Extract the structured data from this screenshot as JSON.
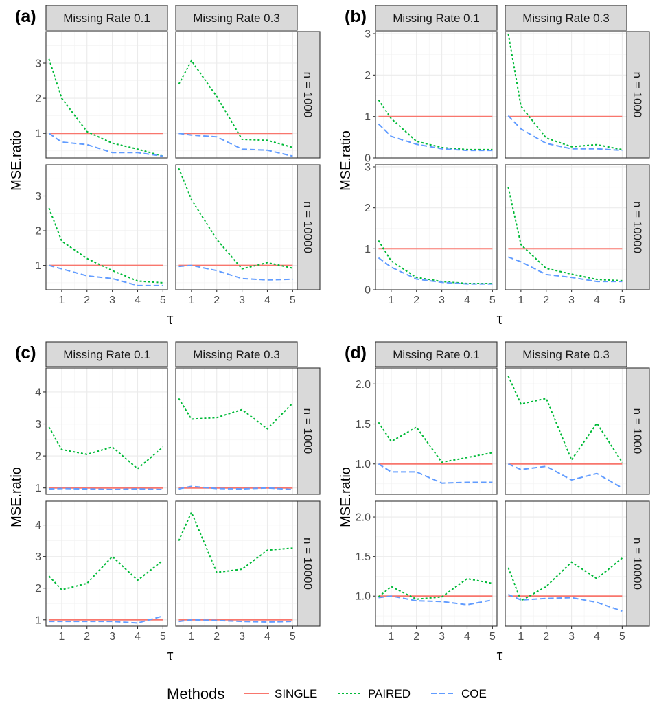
{
  "legend": {
    "title": "Methods",
    "items": [
      {
        "key": "SINGLE",
        "label": "SINGLE",
        "color": "#F8766D",
        "dash": "solid"
      },
      {
        "key": "PAIRED",
        "label": "PAIRED",
        "color": "#00BA38",
        "dash": "dotted"
      },
      {
        "key": "COE",
        "label": "COE",
        "color": "#619CFF",
        "dash": "dashed"
      }
    ]
  },
  "chart_data": [
    {
      "panel_label": "(a)",
      "type": "line",
      "x": [
        0.5,
        1,
        2,
        3,
        4,
        5
      ],
      "x_ticks": [
        1,
        2,
        3,
        4,
        5
      ],
      "xlabel": "τ",
      "ylabel": "MSE.ratio",
      "ylim": [
        0.3,
        3.9
      ],
      "y_ticks": [
        1,
        2,
        3
      ],
      "grid": true,
      "columns": [
        "Missing Rate 0.1",
        "Missing Rate 0.3"
      ],
      "rows": [
        "n = 1000",
        "n = 10000"
      ],
      "facets": [
        {
          "col": 0,
          "row": 0,
          "series": [
            {
              "name": "SINGLE",
              "values": [
                1,
                1,
                1,
                1,
                1,
                1
              ]
            },
            {
              "name": "PAIRED",
              "values": [
                3.12,
                2.0,
                1.05,
                0.72,
                0.55,
                0.35
              ]
            },
            {
              "name": "COE",
              "values": [
                1.0,
                0.75,
                0.68,
                0.45,
                0.45,
                0.35
              ]
            }
          ]
        },
        {
          "col": 1,
          "row": 0,
          "series": [
            {
              "name": "SINGLE",
              "values": [
                1,
                1,
                1,
                1,
                1,
                1
              ]
            },
            {
              "name": "PAIRED",
              "values": [
                2.4,
                3.07,
                2.05,
                0.83,
                0.8,
                0.6
              ]
            },
            {
              "name": "COE",
              "values": [
                1.0,
                0.95,
                0.9,
                0.55,
                0.52,
                0.35
              ]
            }
          ]
        },
        {
          "col": 0,
          "row": 1,
          "series": [
            {
              "name": "SINGLE",
              "values": [
                1,
                1,
                1,
                1,
                1,
                1
              ]
            },
            {
              "name": "PAIRED",
              "values": [
                2.65,
                1.7,
                1.2,
                0.85,
                0.55,
                0.5
              ]
            },
            {
              "name": "COE",
              "values": [
                1.0,
                0.9,
                0.7,
                0.62,
                0.42,
                0.42
              ]
            }
          ]
        },
        {
          "col": 1,
          "row": 1,
          "series": [
            {
              "name": "SINGLE",
              "values": [
                1,
                1,
                1,
                1,
                1,
                1
              ]
            },
            {
              "name": "PAIRED",
              "values": [
                3.8,
                2.9,
                1.75,
                0.9,
                1.08,
                0.92
              ]
            },
            {
              "name": "COE",
              "values": [
                0.97,
                1.0,
                0.85,
                0.62,
                0.58,
                0.6
              ]
            }
          ]
        }
      ]
    },
    {
      "panel_label": "(b)",
      "type": "line",
      "x": [
        0.5,
        1,
        2,
        3,
        4,
        5
      ],
      "x_ticks": [
        1,
        2,
        3,
        4,
        5
      ],
      "xlabel": "τ",
      "ylabel": "MSE.ratio",
      "ylim": [
        0,
        3.05
      ],
      "y_ticks": [
        0,
        1,
        2,
        3
      ],
      "grid": true,
      "columns": [
        "Missing Rate 0.1",
        "Missing Rate 0.3"
      ],
      "rows": [
        "n = 1000",
        "n = 10000"
      ],
      "facets": [
        {
          "col": 0,
          "row": 0,
          "series": [
            {
              "name": "SINGLE",
              "values": [
                1,
                1,
                1,
                1,
                1,
                1
              ]
            },
            {
              "name": "PAIRED",
              "values": [
                1.4,
                0.95,
                0.4,
                0.25,
                0.2,
                0.2
              ]
            },
            {
              "name": "COE",
              "values": [
                0.82,
                0.52,
                0.33,
                0.22,
                0.18,
                0.18
              ]
            }
          ]
        },
        {
          "col": 1,
          "row": 0,
          "series": [
            {
              "name": "SINGLE",
              "values": [
                1,
                1,
                1,
                1,
                1,
                1
              ]
            },
            {
              "name": "PAIRED",
              "values": [
                3.0,
                1.25,
                0.48,
                0.27,
                0.32,
                0.2
              ]
            },
            {
              "name": "COE",
              "values": [
                1.02,
                0.7,
                0.35,
                0.22,
                0.22,
                0.18
              ]
            }
          ]
        },
        {
          "col": 0,
          "row": 1,
          "series": [
            {
              "name": "SINGLE",
              "values": [
                1,
                1,
                1,
                1,
                1,
                1
              ]
            },
            {
              "name": "PAIRED",
              "values": [
                1.2,
                0.7,
                0.3,
                0.2,
                0.15,
                0.15
              ]
            },
            {
              "name": "COE",
              "values": [
                0.78,
                0.55,
                0.26,
                0.18,
                0.14,
                0.14
              ]
            }
          ]
        },
        {
          "col": 1,
          "row": 1,
          "series": [
            {
              "name": "SINGLE",
              "values": [
                1,
                1,
                1,
                1,
                1,
                1
              ]
            },
            {
              "name": "PAIRED",
              "values": [
                2.5,
                1.1,
                0.52,
                0.38,
                0.25,
                0.22
              ]
            },
            {
              "name": "COE",
              "values": [
                0.8,
                0.68,
                0.37,
                0.3,
                0.2,
                0.2
              ]
            }
          ]
        }
      ]
    },
    {
      "panel_label": "(c)",
      "type": "line",
      "x": [
        0.5,
        1,
        2,
        3,
        4,
        5
      ],
      "x_ticks": [
        1,
        2,
        3,
        4,
        5
      ],
      "xlabel": "τ",
      "ylabel": "MSE.ratio",
      "ylim": [
        0.8,
        4.75
      ],
      "y_ticks": [
        1,
        2,
        3,
        4
      ],
      "grid": true,
      "columns": [
        "Missing Rate 0.1",
        "Missing Rate 0.3"
      ],
      "rows": [
        "n = 1000",
        "n = 10000"
      ],
      "facets": [
        {
          "col": 0,
          "row": 0,
          "series": [
            {
              "name": "SINGLE",
              "values": [
                1,
                1,
                1,
                1,
                1,
                1
              ]
            },
            {
              "name": "PAIRED",
              "values": [
                2.9,
                2.2,
                2.05,
                2.28,
                1.6,
                2.28
              ]
            },
            {
              "name": "COE",
              "values": [
                0.97,
                0.98,
                0.97,
                0.95,
                0.97,
                0.95
              ]
            }
          ]
        },
        {
          "col": 1,
          "row": 0,
          "series": [
            {
              "name": "SINGLE",
              "values": [
                1,
                1,
                1,
                1,
                1,
                1
              ]
            },
            {
              "name": "PAIRED",
              "values": [
                3.8,
                3.15,
                3.2,
                3.45,
                2.85,
                3.65
              ]
            },
            {
              "name": "COE",
              "values": [
                0.97,
                1.05,
                0.98,
                0.97,
                1.0,
                0.95
              ]
            }
          ]
        },
        {
          "col": 0,
          "row": 1,
          "series": [
            {
              "name": "SINGLE",
              "values": [
                1,
                1,
                1,
                1,
                1,
                1
              ]
            },
            {
              "name": "PAIRED",
              "values": [
                2.38,
                1.95,
                2.15,
                3.0,
                2.25,
                2.88
              ]
            },
            {
              "name": "COE",
              "values": [
                0.95,
                0.95,
                0.95,
                0.95,
                0.9,
                1.12
              ]
            }
          ]
        },
        {
          "col": 1,
          "row": 1,
          "series": [
            {
              "name": "SINGLE",
              "values": [
                1,
                1,
                1,
                1,
                1,
                1
              ]
            },
            {
              "name": "PAIRED",
              "values": [
                3.5,
                4.4,
                2.5,
                2.6,
                3.2,
                3.27
              ]
            },
            {
              "name": "COE",
              "values": [
                0.95,
                1.0,
                0.98,
                0.95,
                0.93,
                0.95
              ]
            }
          ]
        }
      ]
    },
    {
      "panel_label": "(d)",
      "type": "line",
      "x": [
        0.5,
        1,
        2,
        3,
        4,
        5
      ],
      "x_ticks": [
        1,
        2,
        3,
        4,
        5
      ],
      "xlabel": "τ",
      "ylabel": "MSE.ratio",
      "ylim": [
        0.62,
        2.2
      ],
      "y_ticks": [
        "1.0",
        "1.5",
        "2.0"
      ],
      "grid": true,
      "columns": [
        "Missing Rate 0.1",
        "Missing Rate 0.3"
      ],
      "rows": [
        "n = 1000",
        "n = 10000"
      ],
      "facets": [
        {
          "col": 0,
          "row": 0,
          "series": [
            {
              "name": "SINGLE",
              "values": [
                1,
                1,
                1,
                1,
                1,
                1
              ]
            },
            {
              "name": "PAIRED",
              "values": [
                1.52,
                1.28,
                1.46,
                1.02,
                1.08,
                1.14
              ]
            },
            {
              "name": "COE",
              "values": [
                1.0,
                0.9,
                0.9,
                0.76,
                0.77,
                0.77
              ]
            }
          ]
        },
        {
          "col": 1,
          "row": 0,
          "series": [
            {
              "name": "SINGLE",
              "values": [
                1,
                1,
                1,
                1,
                1,
                1
              ]
            },
            {
              "name": "PAIRED",
              "values": [
                2.1,
                1.75,
                1.82,
                1.05,
                1.51,
                1.02
              ]
            },
            {
              "name": "COE",
              "values": [
                1.0,
                0.93,
                0.97,
                0.8,
                0.88,
                0.7
              ]
            }
          ]
        },
        {
          "col": 0,
          "row": 1,
          "series": [
            {
              "name": "SINGLE",
              "values": [
                1,
                1,
                1,
                1,
                1,
                1
              ]
            },
            {
              "name": "PAIRED",
              "values": [
                0.99,
                1.12,
                0.96,
                0.99,
                1.22,
                1.16
              ]
            },
            {
              "name": "COE",
              "values": [
                0.98,
                1.0,
                0.94,
                0.93,
                0.89,
                0.95
              ]
            }
          ]
        },
        {
          "col": 1,
          "row": 1,
          "series": [
            {
              "name": "SINGLE",
              "values": [
                1,
                1,
                1,
                1,
                1,
                1
              ]
            },
            {
              "name": "PAIRED",
              "values": [
                1.36,
                0.94,
                1.12,
                1.43,
                1.22,
                1.48
              ]
            },
            {
              "name": "COE",
              "values": [
                1.02,
                0.95,
                0.97,
                0.98,
                0.92,
                0.81
              ]
            }
          ]
        }
      ]
    }
  ]
}
